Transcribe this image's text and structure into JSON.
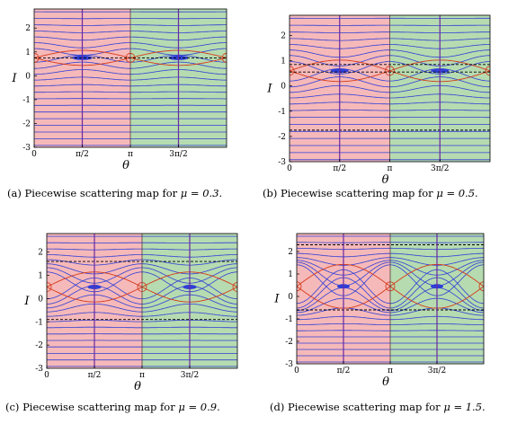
{
  "colors": {
    "left_region": "#f6b9b9",
    "right_region": "#b6dbb0",
    "blue_curve": "#2f3fd6",
    "red_curve": "#d43a1a",
    "purple_line": "#6a2aa0",
    "dashed": "#000000"
  },
  "axes": {
    "ylabel": "I",
    "xlabel": "θ",
    "yticks": [
      "2",
      "1",
      "0",
      "-1",
      "-2",
      "-3"
    ],
    "xticks": [
      "0",
      "π/2",
      "π",
      "3π/2"
    ]
  },
  "panels": [
    {
      "caption": "(a)  Piecewise scattering map for ",
      "mu": "μ = 0.3.",
      "chart_data": {
        "type": "scatter",
        "mu": 0.3,
        "xlim": [
          0,
          6.2832
        ],
        "ylim": [
          -3,
          2.8
        ],
        "dashed_I": [
          0.75
        ],
        "fixed_point_I": 0.75
      }
    },
    {
      "caption": "(b)  Piecewise scattering map for ",
      "mu": "μ = 0.5.",
      "chart_data": {
        "type": "scatter",
        "mu": 0.5,
        "xlim": [
          0,
          6.2832
        ],
        "ylim": [
          -3,
          2.8
        ],
        "dashed_I": [
          0.85,
          0.55,
          -1.75
        ],
        "fixed_point_I": 0.6
      }
    },
    {
      "caption": "(c)  Piecewise scattering map for ",
      "mu": "μ = 0.9.",
      "chart_data": {
        "type": "scatter",
        "mu": 0.9,
        "xlim": [
          0,
          6.2832
        ],
        "ylim": [
          -3,
          2.8
        ],
        "dashed_I": [
          1.6,
          -0.9
        ],
        "fixed_point_I": 0.5
      }
    },
    {
      "caption": "(d)  Piecewise scattering map for ",
      "mu": "μ = 1.5.",
      "chart_data": {
        "type": "scatter",
        "mu": 1.5,
        "xlim": [
          0,
          6.2832
        ],
        "ylim": [
          -3,
          2.8
        ],
        "dashed_I": [
          2.3,
          -0.6
        ],
        "fixed_point_I": 0.45
      }
    }
  ]
}
